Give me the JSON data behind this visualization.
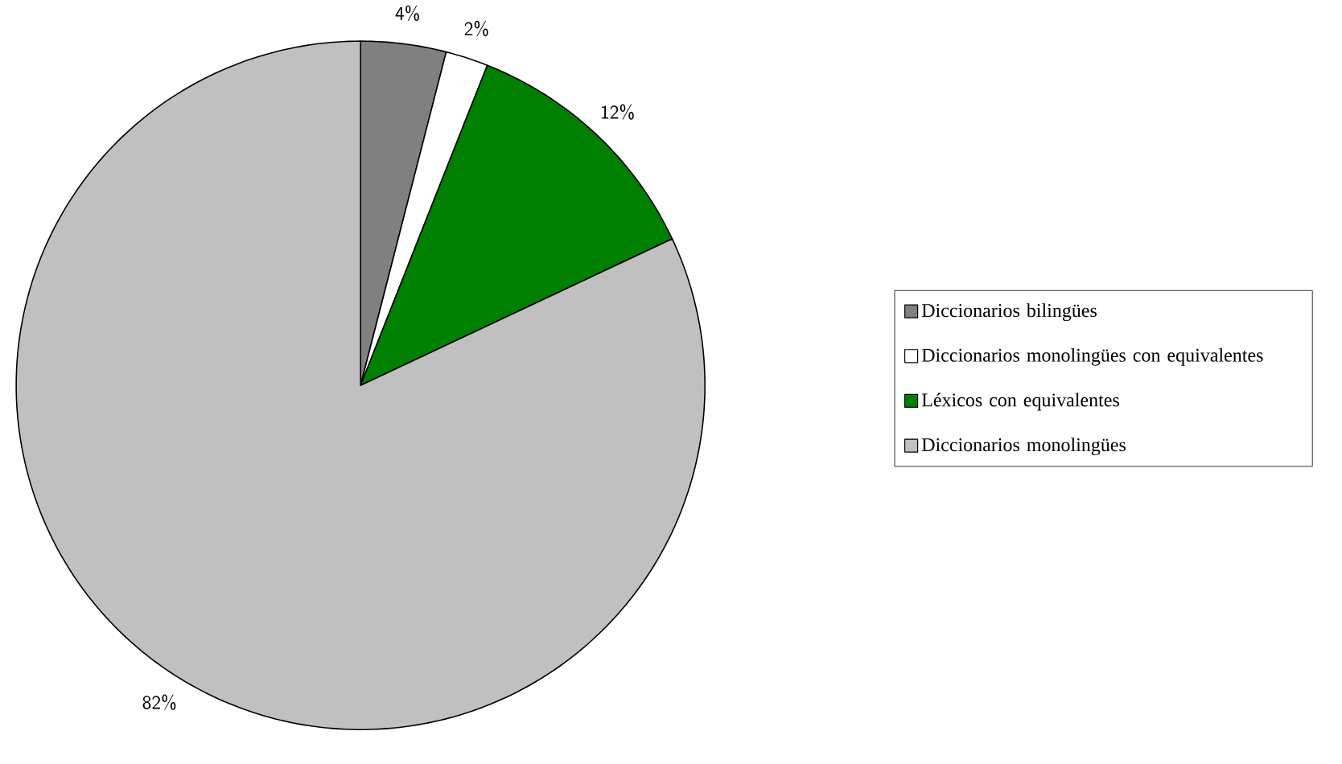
{
  "chart_data": {
    "type": "pie",
    "categories": [
      "Diccionarios bilingües",
      "Diccionarios monolingües con equivalentes",
      "Léxicos con equivalentes",
      "Diccionarios monolingües"
    ],
    "values": [
      4,
      2,
      12,
      82
    ],
    "colors": [
      "#808080",
      "#ffffff",
      "#008000",
      "#c0c0c0"
    ],
    "value_labels": [
      "4%",
      "2%",
      "12%",
      "82%"
    ],
    "legend": "right"
  }
}
